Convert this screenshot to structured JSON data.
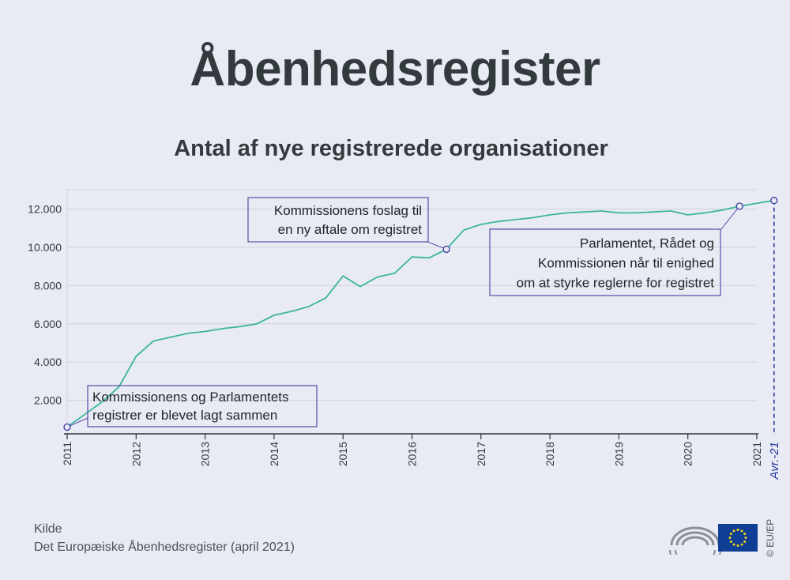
{
  "title": "Åbenhedsregister",
  "chart_data": {
    "type": "line",
    "title": "Antal af nye registrerede organisationer",
    "xlabel": "",
    "ylabel": "",
    "ylim": [
      0,
      13000
    ],
    "xlim": [
      2011.0,
      2021.25
    ],
    "grid": true,
    "y_ticks": [
      2000,
      4000,
      6000,
      8000,
      10000,
      12000
    ],
    "y_tick_labels": [
      "2.000",
      "4.000",
      "6.000",
      "8.000",
      "10.000",
      "12.000"
    ],
    "x_ticks": [
      2011,
      2012,
      2013,
      2014,
      2015,
      2016,
      2017,
      2018,
      2019,
      2020,
      2021
    ],
    "x_tick_labels": [
      "2011",
      "2012",
      "2013",
      "2014",
      "2015",
      "2016",
      "2017",
      "2018",
      "2019",
      "2020",
      "2021"
    ],
    "end_marker_label": "Avr.-21",
    "series": [
      {
        "color": "#3bb59a",
        "x": [
          2011.0,
          2011.25,
          2011.5,
          2011.75,
          2012.0,
          2012.25,
          2012.5,
          2012.75,
          2013.0,
          2013.25,
          2013.5,
          2013.75,
          2014.0,
          2014.25,
          2014.5,
          2014.75,
          2015.0,
          2015.25,
          2015.5,
          2015.75,
          2016.0,
          2016.25,
          2016.5,
          2016.75,
          2017.0,
          2017.25,
          2017.5,
          2017.75,
          2018.0,
          2018.25,
          2018.5,
          2018.75,
          2019.0,
          2019.25,
          2019.5,
          2019.75,
          2020.0,
          2020.25,
          2020.5,
          2020.75,
          2021.0,
          2021.25
        ],
        "y": [
          600,
          1250,
          1900,
          2700,
          4300,
          5100,
          5300,
          5500,
          5600,
          5750,
          5850,
          6000,
          6450,
          6650,
          6900,
          7350,
          8500,
          7950,
          8450,
          8650,
          9500,
          9450,
          9900,
          10900,
          11200,
          11350,
          11450,
          11550,
          11700,
          11800,
          11850,
          11900,
          11800,
          11800,
          11850,
          11900,
          11700,
          11800,
          11950,
          12150,
          12300,
          12450
        ]
      }
    ],
    "annotations": [
      {
        "x": 2011.0,
        "y": 600,
        "text_lines": [
          "Kommissionens og Parlamentets",
          "registrer er blevet lagt sammen"
        ]
      },
      {
        "x": 2016.5,
        "y": 9900,
        "text_lines": [
          "Kommissionens foslag til",
          "en ny aftale om registret"
        ]
      },
      {
        "x": 2020.75,
        "y": 12150,
        "text_lines": [
          "Parlamentet, Rådet og",
          "Kommissionen når til enighed",
          "om at styrke reglerne for registret"
        ]
      },
      {
        "x": 2021.25,
        "y": 12450,
        "text_lines": []
      }
    ]
  },
  "source": {
    "label": "Kilde",
    "text": "Det Europæiske Åbenhedsregister (april 2021)"
  },
  "credit": "© EU/EP",
  "colors": {
    "line": "#3bb59a",
    "annotation_border": "#5a4aa8",
    "marker": "#3a3aa0",
    "end_marker": "#22359b",
    "grid": "#cfd3de",
    "text": "#333a3d",
    "eu_blue": "#0f3f94",
    "eu_gold": "#f7d117"
  }
}
